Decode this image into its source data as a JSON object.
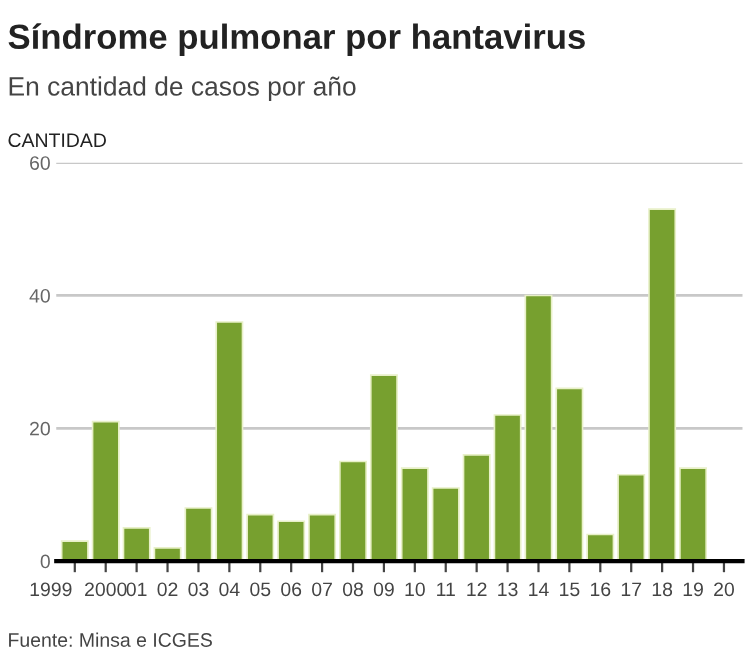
{
  "chart_data": {
    "type": "bar",
    "title": "Síndrome pulmonar por hantavirus",
    "subtitle": "En cantidad de casos por año",
    "ylabel": "CANTIDAD",
    "categories": [
      "1999",
      "2000",
      "01",
      "02",
      "03",
      "04",
      "05",
      "06",
      "07",
      "08",
      "09",
      "10",
      "11",
      "12",
      "13",
      "14",
      "15",
      "16",
      "17",
      "18",
      "19",
      "20"
    ],
    "values": [
      3,
      21,
      5,
      2,
      8,
      36,
      7,
      6,
      7,
      15,
      28,
      14,
      11,
      16,
      22,
      40,
      26,
      4,
      13,
      53,
      14,
      null
    ],
    "color": "#77a02f",
    "ylim": [
      0,
      60
    ],
    "yticks": [
      0,
      20,
      40,
      60
    ],
    "grid": "y",
    "annotations": [
      "Fuente: Minsa e ICGES"
    ]
  }
}
